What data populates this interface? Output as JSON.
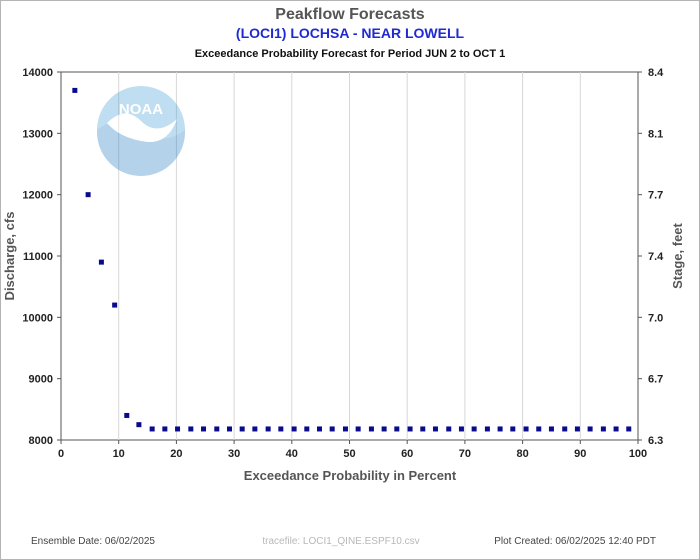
{
  "chart_data": {
    "type": "scatter",
    "title": "Peakflow Forecasts",
    "subtitle": "(LOCI1) LOCHSA - NEAR LOWELL",
    "period_label": "Exceedance Probability Forecast for Period JUN 2 to OCT 1",
    "xlabel": "Exceedance Probability in Percent",
    "ylabel": "Discharge, cfs",
    "ylabel_right": "Stage, feet",
    "xlim": [
      0,
      100
    ],
    "ylim": [
      8000,
      14000
    ],
    "x_ticks": [
      0,
      10,
      20,
      30,
      40,
      50,
      60,
      70,
      80,
      90,
      100
    ],
    "y_ticks": [
      8000,
      9000,
      10000,
      11000,
      12000,
      13000,
      14000
    ],
    "right_ticks": [
      {
        "at": 8000,
        "label": "6.3"
      },
      {
        "at": 9000,
        "label": "6.7"
      },
      {
        "at": 10000,
        "label": "7.0"
      },
      {
        "at": 11000,
        "label": "7.4"
      },
      {
        "at": 12000,
        "label": "7.7"
      },
      {
        "at": 13000,
        "label": "8.1"
      },
      {
        "at": 14000,
        "label": "8.4"
      }
    ],
    "grid": true,
    "marker_color": "#0a0a8c",
    "series": [
      {
        "x": [
          2.4,
          4.7,
          7.0,
          9.3,
          11.4,
          13.5,
          15.8,
          18.0,
          20.2,
          22.5,
          24.7,
          27.0,
          29.2,
          31.4,
          33.6,
          35.9,
          38.1,
          40.4,
          42.6,
          44.8,
          47.0,
          49.3,
          51.5,
          53.8,
          56.0,
          58.2,
          60.5,
          62.7,
          64.9,
          67.2,
          69.4,
          71.6,
          73.9,
          76.1,
          78.3,
          80.6,
          82.8,
          85.0,
          87.3,
          89.5,
          91.7,
          94.0,
          96.2,
          98.4
        ],
        "y": [
          13700,
          12000,
          10900,
          10200,
          8400,
          8250,
          8180,
          8180,
          8180,
          8180,
          8180,
          8180,
          8180,
          8180,
          8180,
          8180,
          8180,
          8180,
          8180,
          8180,
          8180,
          8180,
          8180,
          8180,
          8180,
          8180,
          8180,
          8180,
          8180,
          8180,
          8180,
          8180,
          8180,
          8180,
          8180,
          8180,
          8180,
          8180,
          8180,
          8180,
          8180,
          8180,
          8180,
          8180
        ]
      }
    ]
  },
  "logo_text": "NOAA",
  "footer": {
    "ensemble_date": "Ensemble Date: 06/02/2025",
    "tracefile": "tracefile: LOCI1_QINE.ESPF10.csv",
    "plot_created": "Plot Created: 06/02/2025 12:40 PDT"
  }
}
